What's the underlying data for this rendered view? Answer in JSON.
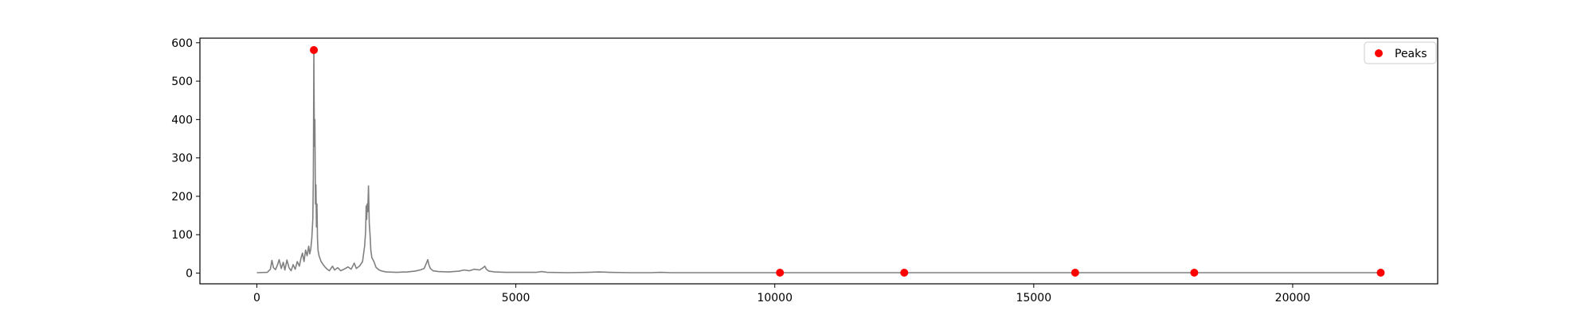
{
  "chart_data": {
    "type": "line",
    "xlim": [
      -1100,
      22800
    ],
    "ylim": [
      -28,
      612
    ],
    "x_ticks": [
      0,
      5000,
      10000,
      15000,
      20000
    ],
    "y_ticks": [
      0,
      100,
      200,
      300,
      400,
      500,
      600
    ],
    "grid": false,
    "legend": {
      "placement": "top-right",
      "entries": [
        "Peaks"
      ]
    },
    "colors": {
      "spectrum": "#808080",
      "peaks": "#ff0000",
      "axes": "#000000"
    },
    "series": [
      {
        "type": "line",
        "points": [
          [
            0,
            1
          ],
          [
            200,
            2
          ],
          [
            260,
            10
          ],
          [
            290,
            33
          ],
          [
            320,
            14
          ],
          [
            360,
            9
          ],
          [
            400,
            22
          ],
          [
            430,
            35
          ],
          [
            470,
            12
          ],
          [
            510,
            28
          ],
          [
            540,
            8
          ],
          [
            580,
            34
          ],
          [
            620,
            14
          ],
          [
            660,
            6
          ],
          [
            700,
            22
          ],
          [
            740,
            10
          ],
          [
            780,
            30
          ],
          [
            820,
            18
          ],
          [
            850,
            38
          ],
          [
            880,
            52
          ],
          [
            910,
            30
          ],
          [
            940,
            60
          ],
          [
            970,
            45
          ],
          [
            1000,
            70
          ],
          [
            1020,
            50
          ],
          [
            1040,
            62
          ],
          [
            1060,
            90
          ],
          [
            1080,
            140
          ],
          [
            1090,
            250
          ],
          [
            1100,
            581
          ],
          [
            1110,
            330
          ],
          [
            1120,
            400
          ],
          [
            1130,
            180
          ],
          [
            1140,
            230
          ],
          [
            1150,
            120
          ],
          [
            1160,
            180
          ],
          [
            1170,
            90
          ],
          [
            1180,
            60
          ],
          [
            1200,
            45
          ],
          [
            1240,
            30
          ],
          [
            1280,
            22
          ],
          [
            1320,
            15
          ],
          [
            1360,
            10
          ],
          [
            1400,
            6
          ],
          [
            1460,
            18
          ],
          [
            1500,
            8
          ],
          [
            1560,
            14
          ],
          [
            1620,
            6
          ],
          [
            1680,
            10
          ],
          [
            1760,
            16
          ],
          [
            1820,
            10
          ],
          [
            1880,
            26
          ],
          [
            1920,
            12
          ],
          [
            1980,
            18
          ],
          [
            2040,
            30
          ],
          [
            2080,
            70
          ],
          [
            2100,
            110
          ],
          [
            2110,
            175
          ],
          [
            2120,
            140
          ],
          [
            2130,
            180
          ],
          [
            2140,
            160
          ],
          [
            2155,
            227
          ],
          [
            2170,
            130
          ],
          [
            2185,
            100
          ],
          [
            2200,
            60
          ],
          [
            2220,
            40
          ],
          [
            2260,
            30
          ],
          [
            2300,
            15
          ],
          [
            2360,
            8
          ],
          [
            2420,
            5
          ],
          [
            2500,
            3
          ],
          [
            2700,
            2
          ],
          [
            2900,
            3
          ],
          [
            3050,
            5
          ],
          [
            3150,
            8
          ],
          [
            3230,
            12
          ],
          [
            3270,
            25
          ],
          [
            3300,
            35
          ],
          [
            3320,
            22
          ],
          [
            3350,
            12
          ],
          [
            3400,
            6
          ],
          [
            3500,
            4
          ],
          [
            3700,
            3
          ],
          [
            3900,
            5
          ],
          [
            4000,
            8
          ],
          [
            4100,
            6
          ],
          [
            4200,
            10
          ],
          [
            4300,
            8
          ],
          [
            4370,
            14
          ],
          [
            4400,
            18
          ],
          [
            4430,
            10
          ],
          [
            4480,
            5
          ],
          [
            4600,
            3
          ],
          [
            4800,
            2
          ],
          [
            5000,
            2
          ],
          [
            5400,
            2
          ],
          [
            5500,
            4
          ],
          [
            5600,
            2
          ],
          [
            6000,
            1
          ],
          [
            6400,
            2
          ],
          [
            6600,
            3
          ],
          [
            6800,
            2
          ],
          [
            7200,
            1
          ],
          [
            7600,
            1
          ],
          [
            7800,
            2
          ],
          [
            8000,
            1
          ],
          [
            9000,
            1
          ],
          [
            10100,
            1
          ],
          [
            11000,
            1
          ],
          [
            12000,
            1
          ],
          [
            12500,
            1
          ],
          [
            14000,
            1
          ],
          [
            15800,
            1
          ],
          [
            17000,
            1
          ],
          [
            18100,
            1
          ],
          [
            20000,
            1
          ],
          [
            21700,
            1
          ]
        ]
      },
      {
        "name": "Peaks",
        "type": "scatter",
        "points": [
          [
            1100,
            581
          ],
          [
            10100,
            1
          ],
          [
            12500,
            1
          ],
          [
            15800,
            1
          ],
          [
            18100,
            1
          ],
          [
            21700,
            1
          ]
        ]
      }
    ]
  }
}
